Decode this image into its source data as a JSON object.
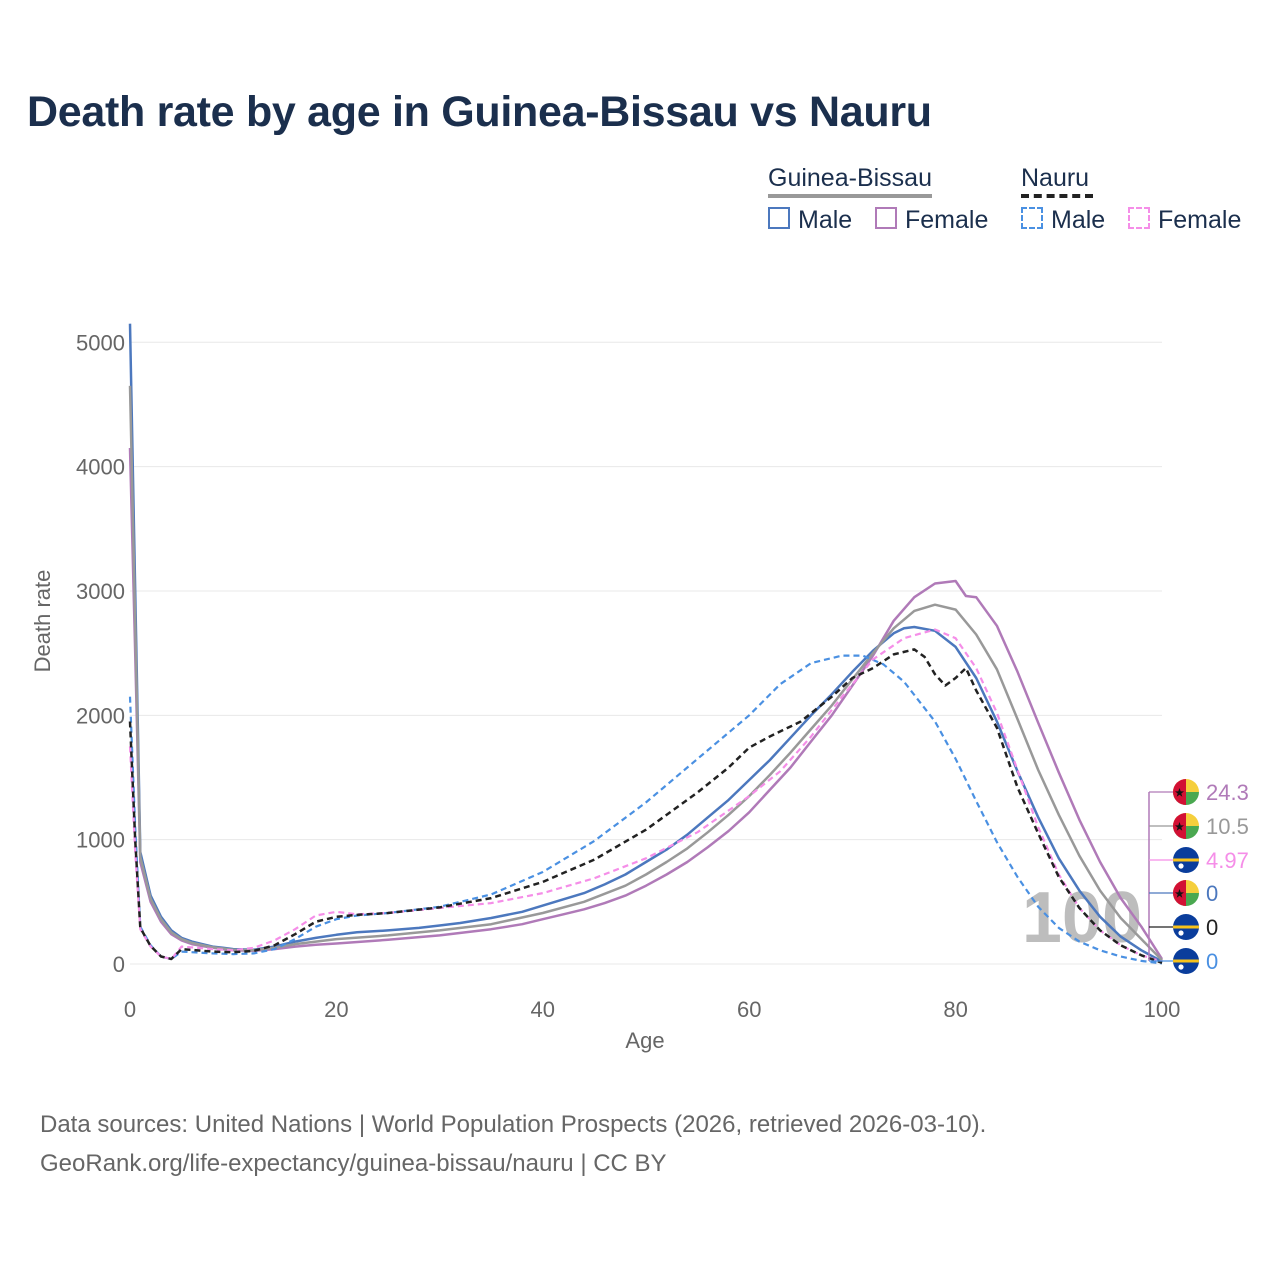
{
  "chart_data": {
    "type": "line",
    "title": "Death rate by age in Guinea-Bissau vs Nauru",
    "xlabel": "Age",
    "ylabel": "Death rate",
    "xlim": [
      0,
      100
    ],
    "ylim": [
      0,
      5300
    ],
    "x_ticks": [
      0,
      20,
      40,
      60,
      80,
      100
    ],
    "y_ticks": [
      0,
      1000,
      2000,
      3000,
      4000,
      5000
    ],
    "current_age_label": "100",
    "legend_groups": [
      {
        "name": "Guinea-Bissau",
        "line_color": "#999999",
        "line_style": "solid",
        "items": [
          {
            "label": "Male",
            "color": "#4c78be"
          },
          {
            "label": "Female",
            "color": "#b07ab8"
          }
        ]
      },
      {
        "name": "Nauru",
        "line_color": "#222222",
        "line_style": "dashed",
        "items": [
          {
            "label": "Male",
            "color": "#4a90e2"
          },
          {
            "label": "Female",
            "color": "#f58ee8"
          }
        ]
      }
    ],
    "series": [
      {
        "name": "Guinea-Bissau Male",
        "color": "#4c78be",
        "dash": false,
        "width": 2.5,
        "points": [
          [
            0,
            5150
          ],
          [
            0.5,
            3000
          ],
          [
            1,
            900
          ],
          [
            2,
            550
          ],
          [
            3,
            380
          ],
          [
            4,
            270
          ],
          [
            5,
            210
          ],
          [
            6,
            180
          ],
          [
            7,
            160
          ],
          [
            8,
            140
          ],
          [
            9,
            130
          ],
          [
            10,
            120
          ],
          [
            12,
            115
          ],
          [
            14,
            140
          ],
          [
            16,
            180
          ],
          [
            18,
            210
          ],
          [
            20,
            235
          ],
          [
            22,
            255
          ],
          [
            25,
            270
          ],
          [
            28,
            290
          ],
          [
            30,
            310
          ],
          [
            32,
            330
          ],
          [
            35,
            370
          ],
          [
            38,
            420
          ],
          [
            40,
            470
          ],
          [
            42,
            520
          ],
          [
            44,
            570
          ],
          [
            46,
            640
          ],
          [
            48,
            720
          ],
          [
            50,
            820
          ],
          [
            52,
            920
          ],
          [
            54,
            1040
          ],
          [
            56,
            1180
          ],
          [
            58,
            1320
          ],
          [
            60,
            1480
          ],
          [
            62,
            1640
          ],
          [
            64,
            1820
          ],
          [
            66,
            2000
          ],
          [
            68,
            2170
          ],
          [
            70,
            2350
          ],
          [
            72,
            2520
          ],
          [
            74,
            2660
          ],
          [
            75,
            2700
          ],
          [
            76,
            2710
          ],
          [
            78,
            2680
          ],
          [
            80,
            2550
          ],
          [
            82,
            2300
          ],
          [
            84,
            1950
          ],
          [
            86,
            1550
          ],
          [
            88,
            1180
          ],
          [
            90,
            850
          ],
          [
            92,
            590
          ],
          [
            94,
            380
          ],
          [
            96,
            220
          ],
          [
            98,
            110
          ],
          [
            100,
            20
          ]
        ]
      },
      {
        "name": "Guinea-Bissau Female",
        "color": "#b07ab8",
        "dash": false,
        "width": 2.5,
        "points": [
          [
            0,
            4150
          ],
          [
            0.5,
            2500
          ],
          [
            1,
            820
          ],
          [
            2,
            500
          ],
          [
            3,
            340
          ],
          [
            4,
            240
          ],
          [
            5,
            190
          ],
          [
            6,
            160
          ],
          [
            7,
            145
          ],
          [
            8,
            130
          ],
          [
            9,
            120
          ],
          [
            10,
            110
          ],
          [
            12,
            105
          ],
          [
            14,
            120
          ],
          [
            16,
            140
          ],
          [
            18,
            155
          ],
          [
            20,
            165
          ],
          [
            25,
            195
          ],
          [
            30,
            230
          ],
          [
            35,
            280
          ],
          [
            38,
            320
          ],
          [
            40,
            360
          ],
          [
            42,
            400
          ],
          [
            44,
            440
          ],
          [
            46,
            490
          ],
          [
            48,
            550
          ],
          [
            50,
            630
          ],
          [
            52,
            720
          ],
          [
            54,
            820
          ],
          [
            56,
            940
          ],
          [
            58,
            1070
          ],
          [
            60,
            1220
          ],
          [
            62,
            1400
          ],
          [
            64,
            1580
          ],
          [
            66,
            1790
          ],
          [
            68,
            2000
          ],
          [
            70,
            2240
          ],
          [
            72,
            2480
          ],
          [
            74,
            2760
          ],
          [
            76,
            2950
          ],
          [
            78,
            3060
          ],
          [
            80,
            3080
          ],
          [
            81,
            2960
          ],
          [
            82,
            2950
          ],
          [
            84,
            2720
          ],
          [
            86,
            2350
          ],
          [
            88,
            1940
          ],
          [
            90,
            1540
          ],
          [
            92,
            1160
          ],
          [
            94,
            820
          ],
          [
            96,
            530
          ],
          [
            98,
            300
          ],
          [
            100,
            40
          ]
        ]
      },
      {
        "name": "Guinea-Bissau Total",
        "color": "#999999",
        "dash": false,
        "width": 2.5,
        "points": [
          [
            0,
            4650
          ],
          [
            0.5,
            2750
          ],
          [
            1,
            860
          ],
          [
            2,
            525
          ],
          [
            3,
            360
          ],
          [
            4,
            255
          ],
          [
            5,
            200
          ],
          [
            6,
            170
          ],
          [
            7,
            152
          ],
          [
            8,
            135
          ],
          [
            9,
            125
          ],
          [
            10,
            115
          ],
          [
            12,
            110
          ],
          [
            14,
            130
          ],
          [
            16,
            160
          ],
          [
            18,
            180
          ],
          [
            20,
            200
          ],
          [
            25,
            230
          ],
          [
            30,
            270
          ],
          [
            35,
            320
          ],
          [
            40,
            410
          ],
          [
            44,
            500
          ],
          [
            48,
            630
          ],
          [
            50,
            720
          ],
          [
            52,
            820
          ],
          [
            54,
            930
          ],
          [
            56,
            1060
          ],
          [
            58,
            1200
          ],
          [
            60,
            1350
          ],
          [
            62,
            1520
          ],
          [
            64,
            1700
          ],
          [
            66,
            1890
          ],
          [
            68,
            2080
          ],
          [
            70,
            2290
          ],
          [
            72,
            2500
          ],
          [
            74,
            2700
          ],
          [
            76,
            2840
          ],
          [
            78,
            2890
          ],
          [
            80,
            2850
          ],
          [
            82,
            2650
          ],
          [
            84,
            2370
          ],
          [
            86,
            1970
          ],
          [
            88,
            1560
          ],
          [
            90,
            1200
          ],
          [
            92,
            870
          ],
          [
            94,
            590
          ],
          [
            96,
            370
          ],
          [
            98,
            200
          ],
          [
            100,
            30
          ]
        ]
      },
      {
        "name": "Nauru Male",
        "color": "#4a90e2",
        "dash": true,
        "width": 2.2,
        "points": [
          [
            0,
            2150
          ],
          [
            0.5,
            1100
          ],
          [
            1,
            300
          ],
          [
            2,
            150
          ],
          [
            3,
            60
          ],
          [
            4,
            40
          ],
          [
            5,
            100
          ],
          [
            8,
            85
          ],
          [
            10,
            80
          ],
          [
            12,
            85
          ],
          [
            14,
            120
          ],
          [
            16,
            200
          ],
          [
            18,
            300
          ],
          [
            20,
            360
          ],
          [
            22,
            390
          ],
          [
            25,
            410
          ],
          [
            30,
            460
          ],
          [
            35,
            560
          ],
          [
            40,
            740
          ],
          [
            45,
            990
          ],
          [
            50,
            1300
          ],
          [
            55,
            1650
          ],
          [
            60,
            2000
          ],
          [
            63,
            2250
          ],
          [
            66,
            2420
          ],
          [
            69,
            2480
          ],
          [
            71,
            2480
          ],
          [
            73,
            2410
          ],
          [
            75,
            2270
          ],
          [
            78,
            1950
          ],
          [
            80,
            1650
          ],
          [
            82,
            1310
          ],
          [
            84,
            980
          ],
          [
            86,
            700
          ],
          [
            88,
            460
          ],
          [
            90,
            290
          ],
          [
            92,
            180
          ],
          [
            94,
            110
          ],
          [
            96,
            60
          ],
          [
            98,
            25
          ],
          [
            100,
            5
          ]
        ]
      },
      {
        "name": "Nauru Female",
        "color": "#f58ee8",
        "dash": true,
        "width": 2.2,
        "points": [
          [
            0,
            1750
          ],
          [
            0.5,
            900
          ],
          [
            1,
            280
          ],
          [
            2,
            140
          ],
          [
            3,
            60
          ],
          [
            4,
            40
          ],
          [
            5,
            140
          ],
          [
            8,
            120
          ],
          [
            10,
            110
          ],
          [
            12,
            130
          ],
          [
            14,
            190
          ],
          [
            16,
            280
          ],
          [
            18,
            390
          ],
          [
            20,
            420
          ],
          [
            22,
            400
          ],
          [
            25,
            410
          ],
          [
            30,
            450
          ],
          [
            35,
            490
          ],
          [
            40,
            570
          ],
          [
            45,
            690
          ],
          [
            50,
            850
          ],
          [
            55,
            1060
          ],
          [
            60,
            1350
          ],
          [
            63,
            1550
          ],
          [
            66,
            1830
          ],
          [
            69,
            2150
          ],
          [
            72,
            2450
          ],
          [
            75,
            2620
          ],
          [
            78,
            2690
          ],
          [
            80,
            2620
          ],
          [
            82,
            2380
          ],
          [
            84,
            2020
          ],
          [
            86,
            1560
          ],
          [
            88,
            1100
          ],
          [
            90,
            720
          ],
          [
            92,
            450
          ],
          [
            94,
            270
          ],
          [
            96,
            150
          ],
          [
            98,
            70
          ],
          [
            100,
            20
          ]
        ]
      },
      {
        "name": "Nauru Total",
        "color": "#222222",
        "dash": true,
        "width": 2.5,
        "points": [
          [
            0,
            1950
          ],
          [
            0.5,
            1000
          ],
          [
            1,
            290
          ],
          [
            2,
            145
          ],
          [
            3,
            60
          ],
          [
            4,
            40
          ],
          [
            5,
            120
          ],
          [
            8,
            100
          ],
          [
            10,
            95
          ],
          [
            12,
            105
          ],
          [
            14,
            150
          ],
          [
            16,
            240
          ],
          [
            18,
            340
          ],
          [
            20,
            380
          ],
          [
            22,
            395
          ],
          [
            25,
            410
          ],
          [
            30,
            455
          ],
          [
            35,
            530
          ],
          [
            40,
            660
          ],
          [
            45,
            840
          ],
          [
            50,
            1080
          ],
          [
            55,
            1380
          ],
          [
            58,
            1580
          ],
          [
            60,
            1740
          ],
          [
            62,
            1830
          ],
          [
            65,
            1950
          ],
          [
            68,
            2150
          ],
          [
            70,
            2300
          ],
          [
            72,
            2380
          ],
          [
            74,
            2490
          ],
          [
            76,
            2530
          ],
          [
            77,
            2470
          ],
          [
            78,
            2330
          ],
          [
            79,
            2240
          ],
          [
            80,
            2300
          ],
          [
            81,
            2380
          ],
          [
            82,
            2200
          ],
          [
            84,
            1900
          ],
          [
            86,
            1420
          ],
          [
            88,
            1050
          ],
          [
            90,
            700
          ],
          [
            92,
            450
          ],
          [
            94,
            270
          ],
          [
            96,
            150
          ],
          [
            98,
            70
          ],
          [
            100,
            10
          ]
        ]
      }
    ],
    "end_labels": [
      {
        "text": "24.3",
        "color": "#b07ab8",
        "flag": "guinea-bissau"
      },
      {
        "text": "10.5",
        "color": "#999999",
        "flag": "guinea-bissau"
      },
      {
        "text": "4.97",
        "color": "#f58ee8",
        "flag": "nauru"
      },
      {
        "text": "0",
        "color": "#4c78be",
        "flag": "guinea-bissau"
      },
      {
        "text": "0",
        "color": "#222222",
        "flag": "nauru"
      },
      {
        "text": "0",
        "color": "#4a90e2",
        "flag": "nauru"
      }
    ]
  },
  "footer": {
    "line1": "Data sources: United Nations | World Population Prospects (2026, retrieved 2026-03-10).",
    "line2": "GeoRank.org/life-expectancy/guinea-bissau/nauru | CC BY"
  }
}
